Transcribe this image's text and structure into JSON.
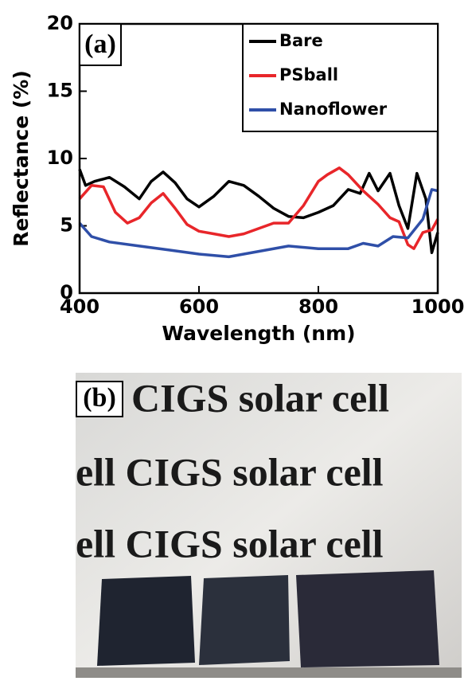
{
  "chart_data": {
    "type": "line",
    "panel_label": "(a)",
    "xlabel": "Wavelength (nm)",
    "ylabel": "Reflectance (%)",
    "xlim": [
      400,
      1000
    ],
    "xticks": [
      400,
      600,
      800,
      1000
    ],
    "ylim": [
      0,
      20
    ],
    "yticks": [
      0,
      5,
      10,
      15,
      20
    ],
    "legend": "upper right",
    "series": [
      {
        "name": "Bare",
        "color": "#000000",
        "x": [
          400,
          410,
          425,
          450,
          475,
          500,
          520,
          540,
          560,
          580,
          600,
          625,
          650,
          675,
          700,
          725,
          750,
          775,
          800,
          825,
          850,
          870,
          885,
          900,
          920,
          935,
          950,
          965,
          980,
          990,
          1000
        ],
        "values": [
          9.2,
          8.0,
          8.3,
          8.6,
          7.9,
          7.0,
          8.3,
          9.0,
          8.2,
          7.0,
          6.4,
          7.2,
          8.3,
          8.0,
          7.2,
          6.3,
          5.7,
          5.6,
          6.0,
          6.5,
          7.7,
          7.4,
          8.9,
          7.6,
          8.9,
          6.5,
          4.8,
          8.9,
          7.0,
          3.0,
          4.5
        ]
      },
      {
        "name": "PSball",
        "color": "#e8262a",
        "x": [
          400,
          420,
          440,
          460,
          480,
          500,
          520,
          540,
          560,
          580,
          600,
          625,
          650,
          675,
          700,
          725,
          750,
          775,
          800,
          815,
          835,
          850,
          875,
          900,
          920,
          935,
          950,
          960,
          975,
          990,
          1000
        ],
        "values": [
          7.0,
          8.0,
          7.9,
          6.0,
          5.2,
          5.6,
          6.7,
          7.4,
          6.3,
          5.1,
          4.6,
          4.4,
          4.2,
          4.4,
          4.8,
          5.2,
          5.2,
          6.5,
          8.3,
          8.8,
          9.3,
          8.8,
          7.6,
          6.6,
          5.6,
          5.3,
          3.6,
          3.3,
          4.5,
          4.7,
          5.5
        ]
      },
      {
        "name": "Nanoflower",
        "color": "#2f4fa8",
        "x": [
          400,
          420,
          450,
          500,
          550,
          600,
          650,
          700,
          750,
          800,
          825,
          850,
          875,
          900,
          925,
          950,
          975,
          990,
          1000
        ],
        "values": [
          5.2,
          4.2,
          3.8,
          3.5,
          3.2,
          2.9,
          2.7,
          3.1,
          3.5,
          3.3,
          3.3,
          3.3,
          3.7,
          3.5,
          4.2,
          4.1,
          5.5,
          7.7,
          7.6
        ]
      }
    ]
  },
  "photo": {
    "panel_label": "(b)",
    "lines": [
      "CIGS solar cell",
      "ell CIGS solar cell",
      "ell CIGS solar cell"
    ]
  }
}
